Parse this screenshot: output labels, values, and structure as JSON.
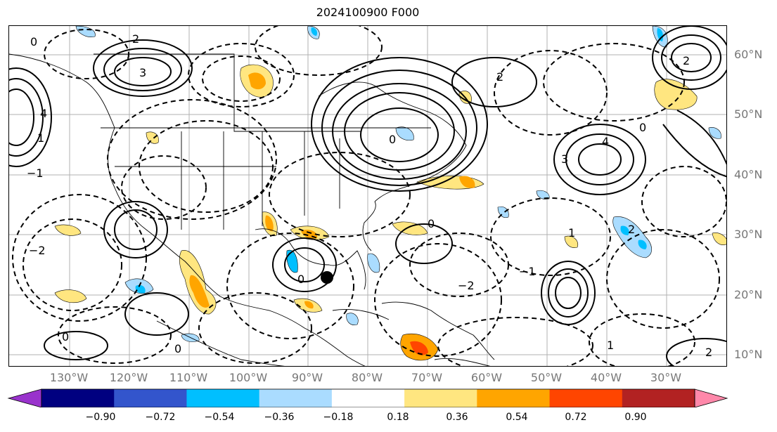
{
  "title": "2024100900 F000",
  "lat_labels": [
    "60°N",
    "50°N",
    "40°N",
    "30°N",
    "20°N",
    "10°N"
  ],
  "lon_labels": [
    "130°W",
    "120°W",
    "110°W",
    "100°W",
    "90°W",
    "80°W",
    "70°W",
    "60°W",
    "50°W",
    "40°W",
    "30°W"
  ],
  "colorbar": {
    "colors": [
      "#9933cc",
      "#000080",
      "#3355cc",
      "#00bfff",
      "#aadcff",
      "#ffffff",
      "#ffe680",
      "#ffa500",
      "#ff4500",
      "#b22222",
      "#ff88aa"
    ],
    "tick_labels": [
      "−0.90",
      "−0.72",
      "−0.54",
      "−0.36",
      "−0.18",
      "0.18",
      "0.36",
      "0.54",
      "0.72",
      "0.90"
    ]
  },
  "contour_labels": [
    "0",
    "2",
    "3",
    "4",
    "1",
    "−1",
    "−2",
    "0",
    "2",
    "3",
    "0",
    "4",
    "2",
    "0",
    "2",
    "−2",
    "0",
    "1",
    "−1",
    "0",
    "2",
    "0",
    "1"
  ],
  "marker": {
    "label": ""
  }
}
